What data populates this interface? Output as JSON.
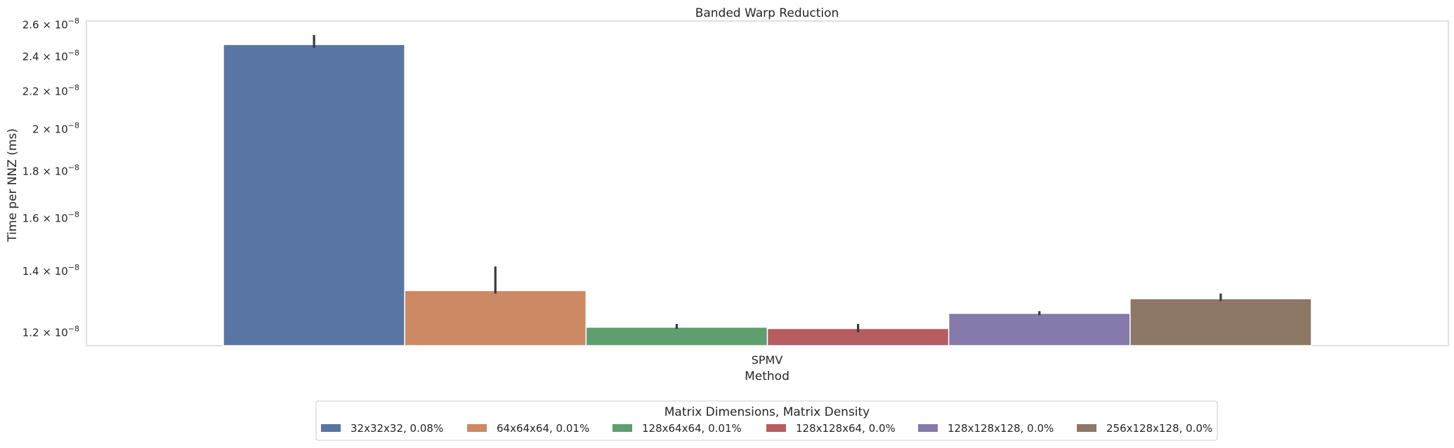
{
  "chart_data": {
    "type": "bar",
    "title": "Banded Warp Reduction",
    "xlabel": "Method",
    "ylabel": "Time per NNZ (ms)",
    "yscale": "log",
    "ylim": [
      1.16e-08,
      2.62e-08
    ],
    "grid": false,
    "categories": [
      "SPMV"
    ],
    "ticks": [
      {
        "value": 1.2e-08,
        "mant": "1.2",
        "exp": "−8"
      },
      {
        "value": 1.4e-08,
        "mant": "1.4",
        "exp": "−8"
      },
      {
        "value": 1.6e-08,
        "mant": "1.6",
        "exp": "−8"
      },
      {
        "value": 1.8e-08,
        "mant": "1.8",
        "exp": "−8"
      },
      {
        "value": 2e-08,
        "mant": "2",
        "exp": "−8"
      },
      {
        "value": 2.2e-08,
        "mant": "2.2",
        "exp": "−8"
      },
      {
        "value": 2.4e-08,
        "mant": "2.4",
        "exp": "−8"
      },
      {
        "value": 2.6e-08,
        "mant": "2.6",
        "exp": "−8"
      }
    ],
    "series": [
      {
        "name": "32x32x32, 0.08%",
        "color": "#5875a4",
        "values": [
          2.47e-08
        ],
        "err": [
          [
            2.45e-08,
            2.53e-08
          ]
        ]
      },
      {
        "name": "64x64x64, 0.01%",
        "color": "#cc8963",
        "values": [
          1.332e-08
        ],
        "err": [
          [
            1.322e-08,
            1.415e-08
          ]
        ]
      },
      {
        "name": "128x64x64, 0.01%",
        "color": "#5f9e6e",
        "values": [
          1.215e-08
        ],
        "err": [
          [
            1.21e-08,
            1.225e-08
          ]
        ]
      },
      {
        "name": "128x128x64, 0.0%",
        "color": "#b55d60",
        "values": [
          1.211e-08
        ],
        "err": [
          [
            1.2e-08,
            1.225e-08
          ]
        ]
      },
      {
        "name": "128x128x128, 0.0%",
        "color": "#857aab",
        "values": [
          1.258e-08
        ],
        "err": [
          [
            1.252e-08,
            1.265e-08
          ]
        ]
      },
      {
        "name": "256x128x128, 0.0%",
        "color": "#8d7866",
        "values": [
          1.305e-08
        ],
        "err": [
          [
            1.298e-08,
            1.322e-08
          ]
        ]
      }
    ],
    "legend": {
      "title": "Matrix Dimensions, Matrix Density",
      "placement": "bottom-center"
    }
  }
}
